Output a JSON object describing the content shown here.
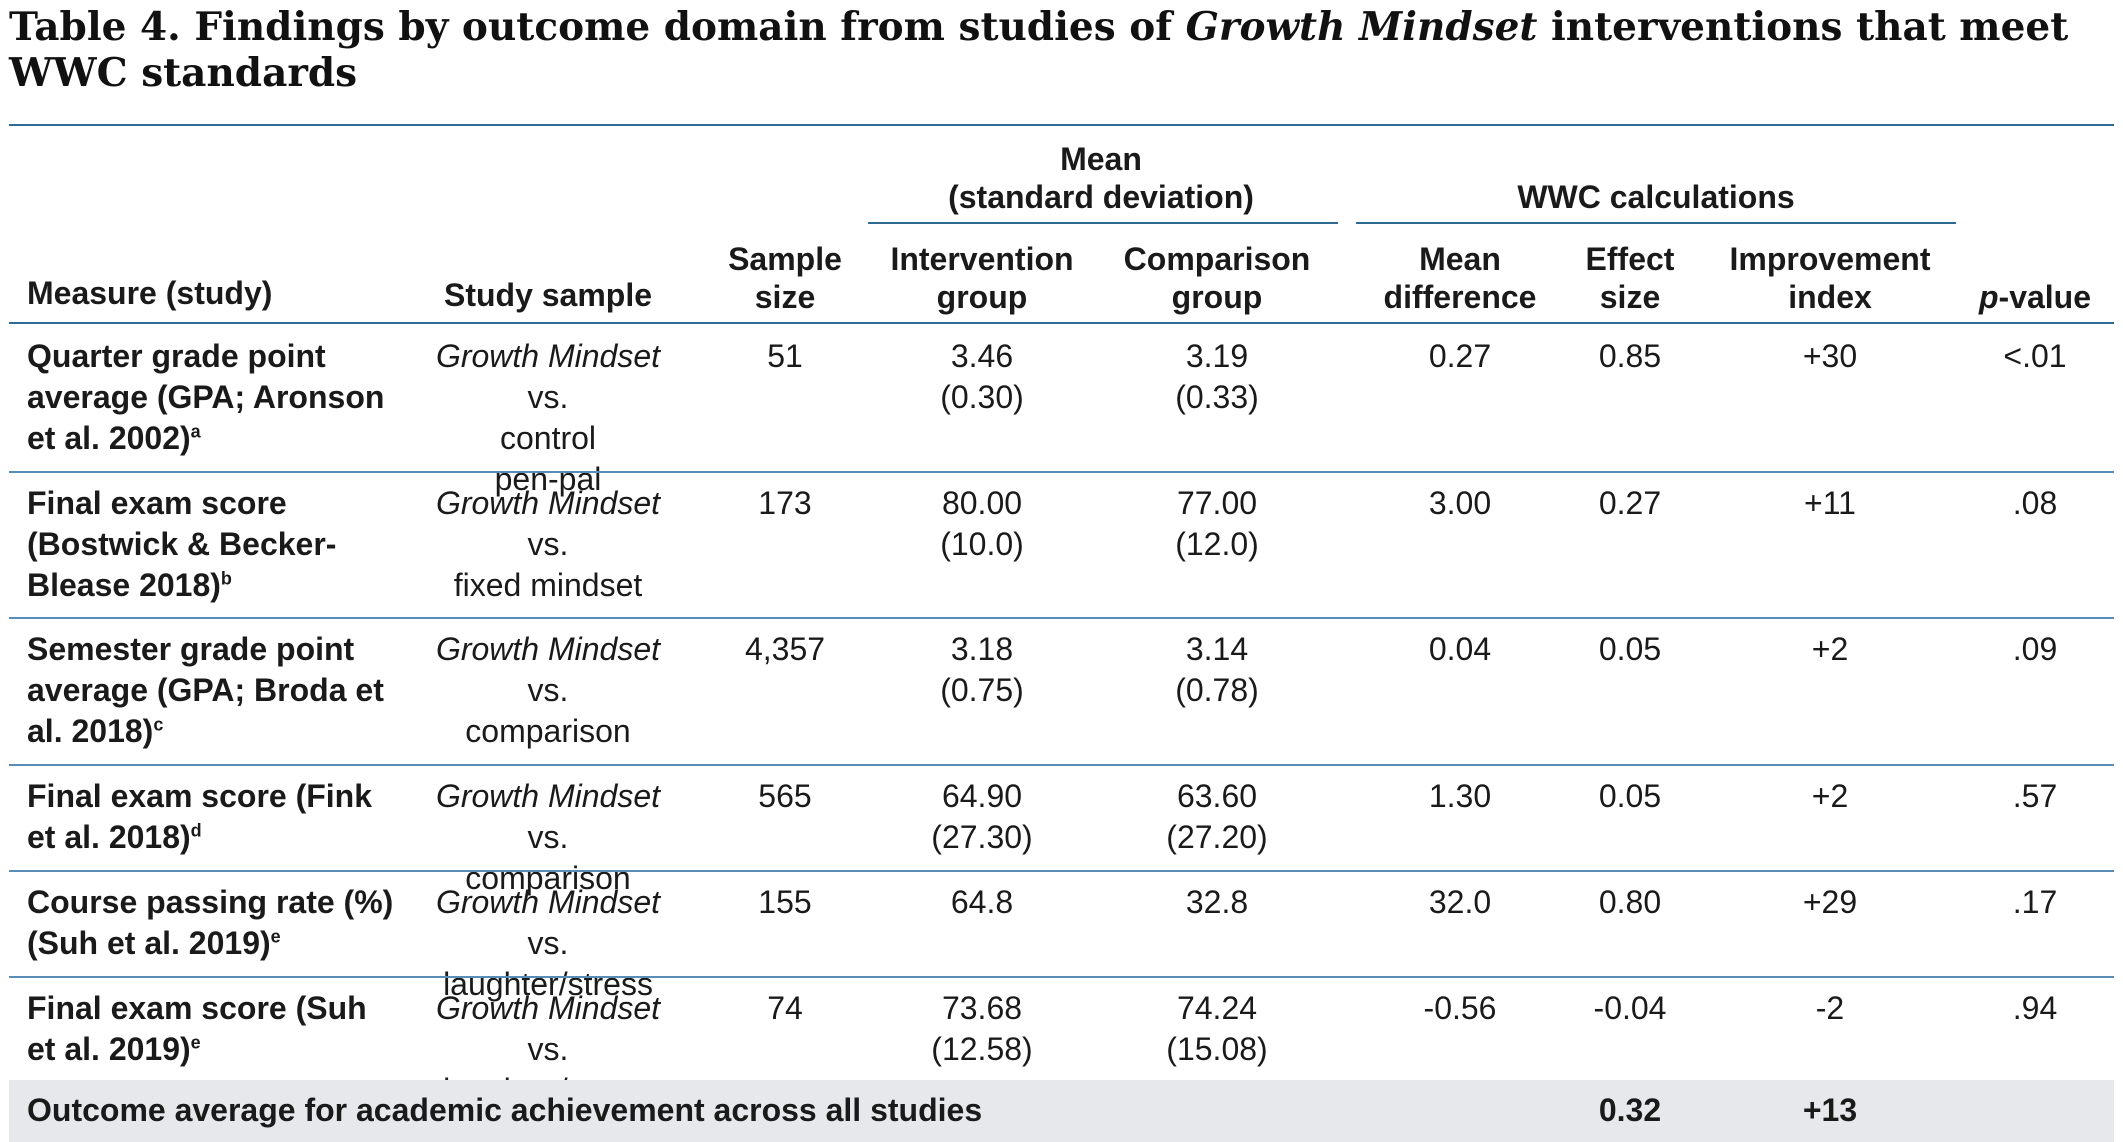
{
  "title": {
    "prefix": "Table 4. Findings by outcome domain from studies of ",
    "italic": "Growth Mindset",
    "suffix": " interventions that meet WWC standards"
  },
  "headers": {
    "measure": "Measure (study)",
    "study_sample": "Study sample",
    "sample_size_line1": "Sample",
    "sample_size_line2": "size",
    "mean_group_line1": "Mean",
    "mean_group_line2": "(standard deviation)",
    "intervention_line1": "Intervention",
    "intervention_line2": "group",
    "comparison_line1": "Comparison",
    "comparison_line2": "group",
    "wwc_group": "WWC calculations",
    "mean_diff_line1": "Mean",
    "mean_diff_line2": "difference",
    "effect_line1": "Effect",
    "effect_line2": "size",
    "improvement_line1": "Improvement",
    "improvement_line2": "index",
    "pvalue_italic": "p",
    "pvalue_rest": "-value"
  },
  "rows": [
    {
      "measure_lines": [
        "Quarter grade point",
        "average (GPA; Aronson",
        "et al. 2002)"
      ],
      "footnote": "a",
      "sample_italic": "Growth Mindset",
      "sample_suffix": " vs.",
      "sample_lines": [
        "control",
        "pen-pal"
      ],
      "n": "51",
      "int_mean": "3.46",
      "int_sd": "(0.30)",
      "cmp_mean": "3.19",
      "cmp_sd": "(0.33)",
      "mean_diff": "0.27",
      "effect": "0.85",
      "improvement": "+30",
      "p": "<.01"
    },
    {
      "measure_lines": [
        "Final exam score",
        "(Bostwick & Becker-",
        "Blease 2018)"
      ],
      "footnote": "b",
      "sample_italic": "Growth Mindset",
      "sample_suffix": " vs.",
      "sample_lines": [
        "fixed mindset"
      ],
      "n": "173",
      "int_mean": "80.00",
      "int_sd": "(10.0)",
      "cmp_mean": "77.00",
      "cmp_sd": "(12.0)",
      "mean_diff": "3.00",
      "effect": "0.27",
      "improvement": "+11",
      "p": ".08"
    },
    {
      "measure_lines": [
        "Semester grade point",
        "average (GPA; Broda et",
        "al. 2018)"
      ],
      "footnote": "c",
      "sample_italic": "Growth Mindset",
      "sample_suffix": " vs.",
      "sample_lines": [
        "comparison"
      ],
      "n": "4,357",
      "int_mean": "3.18",
      "int_sd": "(0.75)",
      "cmp_mean": "3.14",
      "cmp_sd": "(0.78)",
      "mean_diff": "0.04",
      "effect": "0.05",
      "improvement": "+2",
      "p": ".09"
    },
    {
      "measure_lines": [
        "Final exam score (Fink",
        "et al. 2018)"
      ],
      "footnote": "d",
      "sample_italic": "Growth Mindset",
      "sample_suffix": " vs.",
      "sample_lines": [
        "comparison"
      ],
      "n": "565",
      "int_mean": "64.90",
      "int_sd": "(27.30)",
      "cmp_mean": "63.60",
      "cmp_sd": "(27.20)",
      "mean_diff": "1.30",
      "effect": "0.05",
      "improvement": "+2",
      "p": ".57"
    },
    {
      "measure_lines": [
        "Course passing rate (%)",
        "(Suh et al. 2019)"
      ],
      "footnote": "e",
      "sample_italic": "Growth Mindset",
      "sample_suffix": " vs.",
      "sample_lines": [
        "laughter/stress"
      ],
      "n": "155",
      "int_mean": "64.8",
      "int_sd": "",
      "cmp_mean": "32.8",
      "cmp_sd": "",
      "mean_diff": "32.0",
      "effect": "0.80",
      "improvement": "+29",
      "p": ".17"
    },
    {
      "measure_lines": [
        "Final exam score (Suh",
        "et al. 2019)"
      ],
      "footnote": "e",
      "sample_italic": "Growth Mindset",
      "sample_suffix": " vs.",
      "sample_lines": [
        "laughter/stress"
      ],
      "n": "74",
      "int_mean": "73.68",
      "int_sd": "(12.58)",
      "cmp_mean": "74.24",
      "cmp_sd": "(15.08)",
      "mean_diff": "-0.56",
      "effect": "-0.04",
      "improvement": "-2",
      "p": ".94"
    }
  ],
  "footer": {
    "label": "Outcome average for academic achievement across all studies",
    "effect": "0.32",
    "improvement": "+13"
  },
  "colors": {
    "rule": "#2f6a93",
    "row_rule": "#5a8db5",
    "footer_bg": "#e6e8ec"
  }
}
